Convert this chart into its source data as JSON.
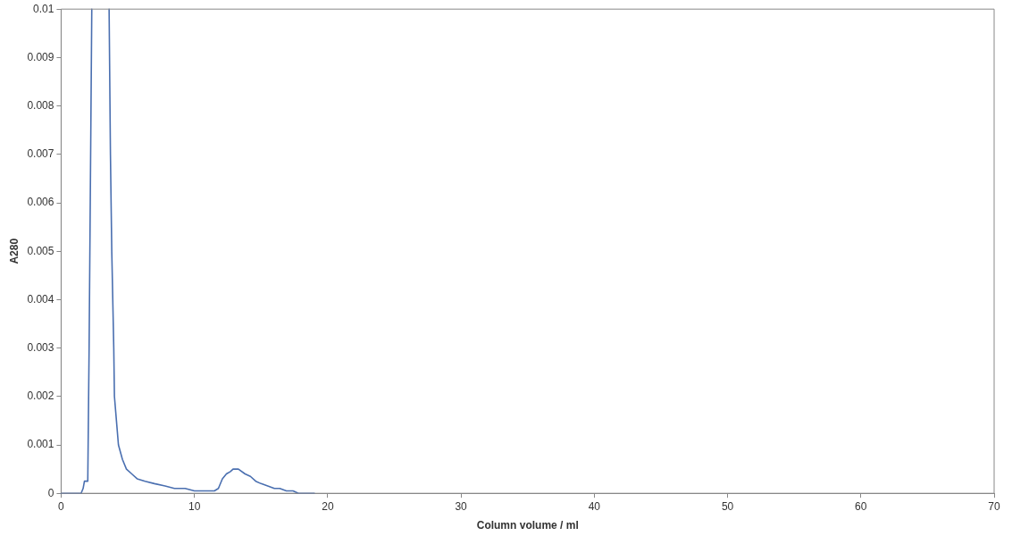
{
  "chart_data": {
    "type": "line",
    "xlabel": "Column volume / ml",
    "ylabel": "A280",
    "x": [
      0,
      1.5,
      1.65,
      1.75,
      2.0,
      2.1,
      2.3,
      2.95,
      3.6,
      3.7,
      3.8,
      3.95,
      4.0,
      4.15,
      4.3,
      4.6,
      4.9,
      5.3,
      5.7,
      6.3,
      7,
      7.8,
      8.5,
      9.3,
      10,
      10.8,
      11.5,
      11.8,
      12.1,
      12.4,
      12.7,
      12.9,
      13.3,
      13.8,
      14.2,
      14.6,
      15,
      15.5,
      16,
      16.4,
      16.9,
      17.4,
      17.8,
      18.3,
      19
    ],
    "series": [
      {
        "color": "#4a6fb0",
        "values": [
          0,
          0,
          0.0001,
          0.00025,
          0.00025,
          0.003,
          0.01,
          null,
          0.01,
          0.007,
          0.005,
          0.003,
          0.002,
          0.0015,
          0.001,
          0.0007,
          0.0005,
          0.0004,
          0.0003,
          0.00025,
          0.0002,
          0.00015,
          0.0001,
          0.0001,
          5e-05,
          5e-05,
          5e-05,
          0.0001,
          0.0003,
          0.0004,
          0.00045,
          0.0005,
          0.0005,
          0.0004,
          0.00035,
          0.00025,
          0.0002,
          0.00015,
          0.0001,
          0.0001,
          5e-05,
          5e-05,
          0,
          0,
          0
        ]
      }
    ],
    "xlim": [
      0,
      70
    ],
    "xticks": [
      0,
      10,
      20,
      30,
      40,
      50,
      60,
      70
    ],
    "ylim": [
      0,
      0.01
    ],
    "yticks": [
      0,
      0.001,
      0.002,
      0.003,
      0.004,
      0.005,
      0.006,
      0.007,
      0.008,
      0.009,
      0.01
    ],
    "grid": false,
    "legend": false,
    "marker": "none",
    "line_style": "solid"
  }
}
